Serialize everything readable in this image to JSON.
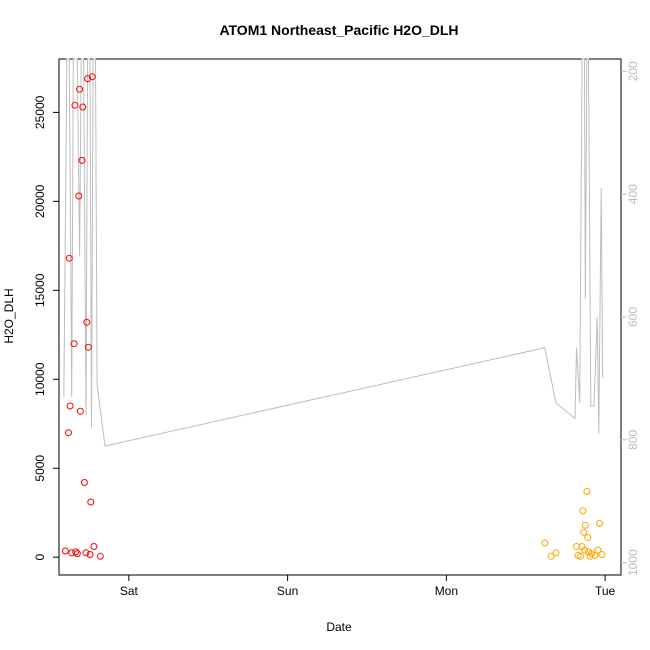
{
  "chart_data": {
    "type": "scatter",
    "title": "ATOM1 Northeast_Pacific H2O_DLH",
    "xlabel": "Date",
    "ylabel": "H2O_DLH",
    "x_unit": "days",
    "x_ticks": [
      {
        "label": "Sat",
        "value": 1.0
      },
      {
        "label": "Sun",
        "value": 2.0
      },
      {
        "label": "Mon",
        "value": 3.0
      },
      {
        "label": "Tue",
        "value": 4.0
      }
    ],
    "xlim": [
      0.56,
      4.1
    ],
    "ylim": [
      -1000,
      28000
    ],
    "y_ticks": [
      0,
      5000,
      10000,
      15000,
      20000,
      25000
    ],
    "y2_ticks": [
      200,
      400,
      600,
      800,
      1000
    ],
    "y2lim": [
      1020,
      180
    ],
    "y2_reversed": true,
    "grid": false,
    "colors": {
      "series_red": "#ff0000",
      "series_orange": "#ffa500",
      "profile_line": "#bdbdbd",
      "axis": "#000000",
      "right_axis": "#bdbdbd"
    },
    "series": [
      {
        "color": "#ff0000",
        "points": [
          [
            0.6,
            350
          ],
          [
            0.62,
            7000
          ],
          [
            0.625,
            16800
          ],
          [
            0.63,
            8500
          ],
          [
            0.64,
            250
          ],
          [
            0.655,
            12000
          ],
          [
            0.66,
            25400
          ],
          [
            0.665,
            300
          ],
          [
            0.675,
            200
          ],
          [
            0.685,
            20300
          ],
          [
            0.69,
            26300
          ],
          [
            0.695,
            8200
          ],
          [
            0.705,
            22300
          ],
          [
            0.71,
            25300
          ],
          [
            0.72,
            4200
          ],
          [
            0.73,
            250
          ],
          [
            0.735,
            13200
          ],
          [
            0.74,
            26900
          ],
          [
            0.745,
            11800
          ],
          [
            0.755,
            150
          ],
          [
            0.76,
            3100
          ],
          [
            0.77,
            27000
          ],
          [
            0.78,
            600
          ],
          [
            0.82,
            50
          ]
        ]
      },
      {
        "color": "#ffa500",
        "points": [
          [
            3.62,
            800
          ],
          [
            3.66,
            50
          ],
          [
            3.69,
            250
          ],
          [
            3.82,
            600
          ],
          [
            3.83,
            100
          ],
          [
            3.845,
            50
          ],
          [
            3.855,
            600
          ],
          [
            3.86,
            2600
          ],
          [
            3.865,
            1400
          ],
          [
            3.87,
            400
          ],
          [
            3.875,
            1800
          ],
          [
            3.885,
            3700
          ],
          [
            3.89,
            1100
          ],
          [
            3.895,
            300
          ],
          [
            3.905,
            50
          ],
          [
            3.915,
            200
          ],
          [
            3.935,
            100
          ],
          [
            3.955,
            400
          ],
          [
            3.965,
            1900
          ],
          [
            3.98,
            150
          ]
        ]
      }
    ],
    "profile_line": [
      [
        0.59,
        730
      ],
      [
        0.61,
        180
      ],
      [
        0.625,
        180
      ],
      [
        0.64,
        730
      ],
      [
        0.65,
        180
      ],
      [
        0.675,
        180
      ],
      [
        0.69,
        500
      ],
      [
        0.7,
        180
      ],
      [
        0.715,
        180
      ],
      [
        0.73,
        760
      ],
      [
        0.74,
        180
      ],
      [
        0.755,
        180
      ],
      [
        0.765,
        780
      ],
      [
        0.775,
        180
      ],
      [
        0.79,
        180
      ],
      [
        0.8,
        710
      ],
      [
        0.85,
        810
      ],
      [
        3.62,
        650
      ],
      [
        3.69,
        740
      ],
      [
        3.81,
        765
      ],
      [
        3.82,
        650
      ],
      [
        3.84,
        740
      ],
      [
        3.855,
        180
      ],
      [
        3.87,
        180
      ],
      [
        3.875,
        570
      ],
      [
        3.885,
        180
      ],
      [
        3.895,
        180
      ],
      [
        3.91,
        745
      ],
      [
        3.93,
        745
      ],
      [
        3.95,
        600
      ],
      [
        3.96,
        790
      ],
      [
        3.975,
        390
      ],
      [
        3.985,
        700
      ]
    ]
  }
}
